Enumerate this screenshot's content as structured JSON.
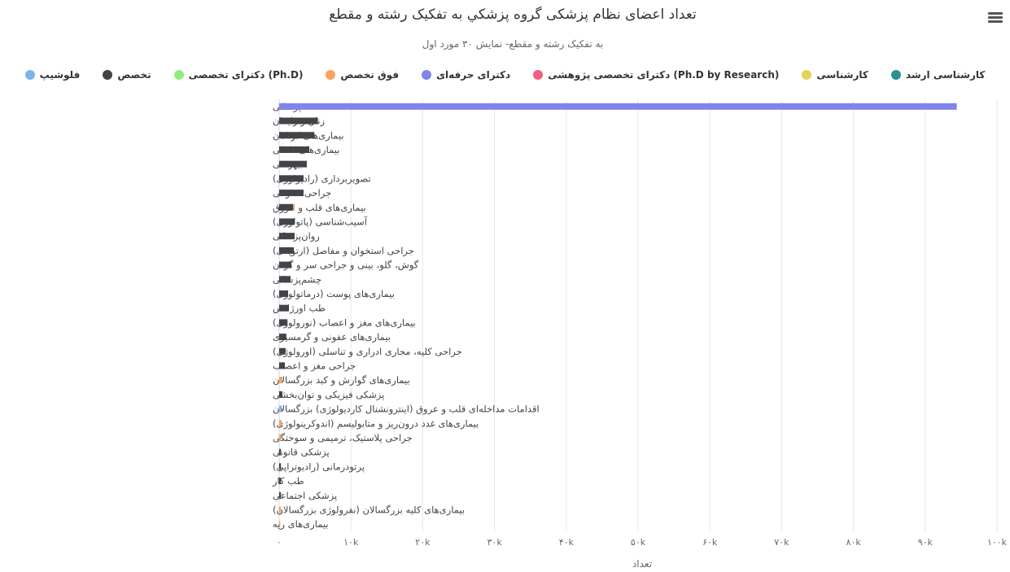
{
  "chart_data": {
    "type": "bar",
    "orientation": "horizontal",
    "stacked": true,
    "title": "تعداد اعضای نظام پزشکی گروه پزشكي به تفکیک رشته و مقطع",
    "subtitle": "به تفکیک رشته و مقطع- نمایش ۳۰ مورد اول",
    "xlabel": "تعداد",
    "xlim": [
      0,
      100000
    ],
    "ticks": [
      "۰",
      "۱۰k",
      "۲۰k",
      "۳۰k",
      "۴۰k",
      "۵۰k",
      "۶۰k",
      "۷۰k",
      "۸۰k",
      "۹۰k",
      "۱۰۰k"
    ],
    "grid": true,
    "legend_position": "top",
    "categories": [
      "پزشکی",
      "زنان و زایمان",
      "بیماری‌های کودکان",
      "بیماری‌های داخلی",
      "بیهوشی",
      "تصویربرداری (رادیولوژی)",
      "جراحی عمومی",
      "بیماری‌های قلب و عروق",
      "آسیب‌شناسی (پاتولوژی)",
      "روان‌پزشکی",
      "جراحی استخوان و مفاصل (ارتوپدی)",
      "گوش، گلو، بینی و جراحی سر و گردن",
      "چشم‌پزشکی",
      "بیماری‌های پوست (درماتولوژی)",
      "طب اورژانس",
      "بیماری‌های مغز و اعصاب (نورولوژی)",
      "بیماری‌های عفونی و گرمسیری",
      "جراحی کلیه، مجاری ادراری و تناسلی (اورولوژی)",
      "جراحی مغز و اعصاب",
      "بیماری‌های گوارش و کبد بزرگسالان",
      "پزشکی فیزیکی و توان‌بخشی",
      "اقدامات مداخله‌ای قلب و عروق (اینترونشنال کاردیولوژی) بزرگسالان",
      "بیماری‌های غدد درون‌ریز و متابولیسم (اندوکرینولوژی)",
      "جراحی پلاستیک، ترمیمی و سوختگی",
      "پزشکی قانونی",
      "پرتودرمانی (رادیوتراپی)",
      "طب کار",
      "پزشکی اجتماعی",
      "بیماری‌های کلیه بزرگسالان (نفرولوژی بزرگسالان)",
      "بیماری‌های ریه"
    ],
    "series": [
      {
        "name": "فلوشیپ",
        "color": "#7cb5ec",
        "values": [
          0,
          0,
          0,
          0,
          0,
          0,
          0,
          0,
          0,
          0,
          0,
          0,
          0,
          0,
          0,
          0,
          0,
          0,
          0,
          0,
          0,
          350,
          0,
          0,
          0,
          0,
          0,
          0,
          0,
          0
        ]
      },
      {
        "name": "تخصص",
        "color": "#434348",
        "values": [
          0,
          5400,
          4900,
          4200,
          3850,
          3400,
          3400,
          1950,
          2150,
          2150,
          2050,
          1700,
          1600,
          1250,
          1250,
          1150,
          1000,
          900,
          800,
          0,
          450,
          0,
          0,
          0,
          250,
          250,
          250,
          250,
          0,
          0
        ]
      },
      {
        "name": "(Ph.D) دکترای تخصصی",
        "color": "#90ed7d",
        "values": [
          0,
          0,
          0,
          0,
          0,
          0,
          0,
          0,
          0,
          0,
          0,
          0,
          0,
          0,
          0,
          0,
          0,
          0,
          0,
          0,
          0,
          0,
          0,
          0,
          0,
          0,
          0,
          0,
          0,
          0
        ]
      },
      {
        "name": "فوق تخصص",
        "color": "#f7a35c",
        "values": [
          0,
          0,
          0,
          0,
          0,
          0,
          0,
          200,
          0,
          0,
          0,
          0,
          0,
          0,
          0,
          0,
          0,
          0,
          0,
          450,
          0,
          0,
          350,
          300,
          0,
          0,
          0,
          0,
          250,
          150
        ]
      },
      {
        "name": "دکترای حرفه‌ای",
        "color": "#8085e9",
        "values": [
          94400,
          0,
          0,
          0,
          0,
          0,
          0,
          0,
          0,
          0,
          0,
          0,
          0,
          0,
          0,
          0,
          0,
          0,
          0,
          0,
          0,
          0,
          0,
          0,
          0,
          0,
          0,
          0,
          0,
          0
        ]
      },
      {
        "name": "(Ph.D by Research) دکترای تخصصی پژوهشی",
        "color": "#f15c80",
        "values": [
          0,
          0,
          0,
          0,
          0,
          0,
          0,
          0,
          0,
          0,
          0,
          0,
          0,
          0,
          0,
          0,
          0,
          0,
          0,
          0,
          0,
          0,
          0,
          0,
          0,
          0,
          0,
          0,
          0,
          0
        ]
      },
      {
        "name": "کارشناسی",
        "color": "#e4d354",
        "values": [
          0,
          0,
          0,
          0,
          0,
          0,
          0,
          0,
          0,
          0,
          0,
          0,
          0,
          0,
          0,
          0,
          0,
          0,
          0,
          0,
          0,
          0,
          0,
          0,
          0,
          0,
          0,
          0,
          0,
          0
        ]
      },
      {
        "name": "کارشناسی ارشد",
        "color": "#2b908f",
        "values": [
          0,
          0,
          0,
          0,
          0,
          0,
          0,
          0,
          0,
          0,
          0,
          0,
          0,
          0,
          0,
          0,
          0,
          0,
          0,
          0,
          0,
          0,
          0,
          0,
          0,
          0,
          0,
          0,
          0,
          0
        ]
      }
    ]
  }
}
